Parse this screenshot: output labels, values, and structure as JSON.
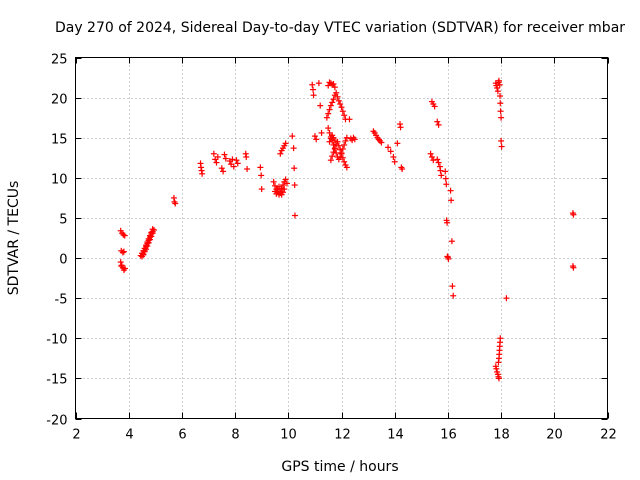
{
  "chart_data": {
    "type": "scatter",
    "title": "Day 270 of 2024, Sidereal Day-to-day VTEC variation (SDTVAR) for receiver mbar",
    "xlabel": "GPS time / hours",
    "ylabel": "SDTVAR / TECUs",
    "xlim": [
      2,
      22
    ],
    "ylim": [
      -20,
      25
    ],
    "xticks": [
      2,
      4,
      6,
      8,
      10,
      12,
      14,
      16,
      18,
      20,
      22
    ],
    "yticks": [
      -20,
      -15,
      -10,
      -5,
      0,
      5,
      10,
      15,
      20,
      25
    ],
    "grid": true,
    "marker": "plus",
    "color": "#ff0000",
    "series": [
      {
        "name": "SDTVAR",
        "points": [
          [
            3.7,
            3.4
          ],
          [
            3.75,
            3.1
          ],
          [
            3.8,
            2.9
          ],
          [
            3.85,
            2.8
          ],
          [
            3.72,
            0.9
          ],
          [
            3.78,
            0.7
          ],
          [
            3.82,
            0.8
          ],
          [
            3.7,
            -0.5
          ],
          [
            3.74,
            -0.9
          ],
          [
            3.78,
            -1.2
          ],
          [
            3.82,
            -1.5
          ],
          [
            3.86,
            -1.3
          ],
          [
            3.72,
            -1.0
          ],
          [
            4.45,
            0.3
          ],
          [
            4.5,
            0.6
          ],
          [
            4.55,
            0.9
          ],
          [
            4.6,
            1.2
          ],
          [
            4.65,
            1.6
          ],
          [
            4.7,
            2.0
          ],
          [
            4.75,
            2.4
          ],
          [
            4.8,
            2.8
          ],
          [
            4.85,
            3.2
          ],
          [
            4.9,
            3.6
          ],
          [
            4.5,
            0.2
          ],
          [
            4.55,
            0.5
          ],
          [
            4.6,
            0.8
          ],
          [
            4.65,
            1.1
          ],
          [
            4.7,
            1.5
          ],
          [
            4.75,
            1.9
          ],
          [
            4.8,
            2.3
          ],
          [
            4.85,
            2.7
          ],
          [
            4.9,
            3.1
          ],
          [
            4.95,
            3.5
          ],
          [
            4.55,
            0.4
          ],
          [
            4.6,
            0.9
          ],
          [
            4.65,
            1.4
          ],
          [
            4.7,
            1.8
          ],
          [
            4.75,
            2.2
          ],
          [
            4.8,
            2.6
          ],
          [
            4.85,
            3.0
          ],
          [
            4.9,
            3.3
          ],
          [
            5.7,
            7.5
          ],
          [
            5.72,
            7.0
          ],
          [
            5.75,
            6.8
          ],
          [
            6.7,
            11.8
          ],
          [
            6.72,
            11.3
          ],
          [
            6.74,
            10.9
          ],
          [
            6.76,
            10.5
          ],
          [
            7.2,
            13.0
          ],
          [
            7.25,
            12.3
          ],
          [
            7.3,
            11.9
          ],
          [
            7.35,
            12.6
          ],
          [
            7.5,
            11.2
          ],
          [
            7.55,
            10.8
          ],
          [
            7.6,
            12.9
          ],
          [
            7.65,
            12.4
          ],
          [
            7.8,
            12.1
          ],
          [
            7.85,
            11.7
          ],
          [
            7.9,
            12.3
          ],
          [
            7.95,
            11.4
          ],
          [
            8.05,
            12.2
          ],
          [
            8.1,
            11.8
          ],
          [
            8.4,
            13.0
          ],
          [
            8.42,
            12.6
          ],
          [
            8.45,
            11.1
          ],
          [
            8.95,
            11.3
          ],
          [
            8.98,
            10.3
          ],
          [
            9.0,
            8.6
          ],
          [
            9.45,
            9.5
          ],
          [
            9.5,
            9.0
          ],
          [
            9.55,
            8.6
          ],
          [
            9.6,
            8.2
          ],
          [
            9.65,
            7.9
          ],
          [
            9.7,
            8.3
          ],
          [
            9.75,
            8.7
          ],
          [
            9.8,
            9.1
          ],
          [
            9.85,
            9.5
          ],
          [
            9.9,
            9.8
          ],
          [
            9.5,
            8.3
          ],
          [
            9.55,
            8.0
          ],
          [
            9.6,
            8.5
          ],
          [
            9.65,
            8.9
          ],
          [
            9.7,
            8.1
          ],
          [
            9.75,
            7.9
          ],
          [
            9.8,
            8.2
          ],
          [
            9.85,
            8.6
          ],
          [
            9.95,
            9.3
          ],
          [
            9.7,
            13.0
          ],
          [
            9.75,
            13.4
          ],
          [
            9.8,
            13.7
          ],
          [
            9.85,
            14.0
          ],
          [
            9.9,
            14.3
          ],
          [
            10.15,
            15.2
          ],
          [
            10.2,
            13.7
          ],
          [
            10.22,
            11.2
          ],
          [
            10.24,
            9.1
          ],
          [
            10.25,
            5.3
          ],
          [
            10.9,
            21.6
          ],
          [
            10.93,
            21.0
          ],
          [
            10.95,
            20.3
          ],
          [
            11.0,
            15.2
          ],
          [
            11.05,
            14.8
          ],
          [
            11.15,
            21.8
          ],
          [
            11.2,
            19.0
          ],
          [
            11.25,
            15.6
          ],
          [
            11.5,
            21.5
          ],
          [
            11.55,
            21.9
          ],
          [
            11.6,
            21.8
          ],
          [
            11.65,
            21.6
          ],
          [
            11.7,
            21.7
          ],
          [
            11.75,
            21.3
          ],
          [
            11.45,
            17.5
          ],
          [
            11.5,
            18.0
          ],
          [
            11.55,
            18.5
          ],
          [
            11.6,
            19.0
          ],
          [
            11.65,
            19.4
          ],
          [
            11.7,
            19.8
          ],
          [
            11.75,
            20.3
          ],
          [
            11.8,
            20.6
          ],
          [
            11.85,
            20.1
          ],
          [
            11.9,
            19.6
          ],
          [
            11.95,
            19.2
          ],
          [
            12.0,
            18.8
          ],
          [
            12.05,
            18.3
          ],
          [
            12.1,
            17.8
          ],
          [
            12.15,
            17.3
          ],
          [
            11.5,
            16.2
          ],
          [
            11.55,
            15.6
          ],
          [
            11.6,
            15.1
          ],
          [
            11.65,
            14.6
          ],
          [
            11.7,
            14.1
          ],
          [
            11.75,
            13.6
          ],
          [
            11.8,
            13.1
          ],
          [
            11.85,
            12.6
          ],
          [
            11.9,
            12.3
          ],
          [
            11.95,
            12.6
          ],
          [
            12.0,
            13.1
          ],
          [
            12.05,
            13.6
          ],
          [
            12.1,
            14.1
          ],
          [
            12.15,
            14.6
          ],
          [
            12.2,
            15.0
          ],
          [
            11.6,
            12.2
          ],
          [
            11.65,
            12.7
          ],
          [
            11.7,
            13.2
          ],
          [
            11.75,
            13.7
          ],
          [
            11.8,
            14.2
          ],
          [
            11.85,
            14.5
          ],
          [
            11.9,
            14.0
          ],
          [
            11.95,
            13.5
          ],
          [
            12.0,
            13.0
          ],
          [
            12.05,
            12.5
          ],
          [
            12.1,
            12.0
          ],
          [
            12.15,
            11.6
          ],
          [
            12.2,
            11.3
          ],
          [
            11.55,
            14.5
          ],
          [
            11.6,
            14.9
          ],
          [
            11.65,
            15.3
          ],
          [
            11.7,
            15.0
          ],
          [
            11.75,
            14.7
          ],
          [
            12.3,
            17.3
          ],
          [
            12.35,
            14.9
          ],
          [
            12.4,
            14.7
          ],
          [
            12.45,
            15.0
          ],
          [
            12.5,
            14.8
          ],
          [
            13.2,
            15.8
          ],
          [
            13.25,
            15.6
          ],
          [
            13.3,
            15.3
          ],
          [
            13.35,
            15.0
          ],
          [
            13.4,
            14.8
          ],
          [
            13.45,
            14.6
          ],
          [
            13.5,
            14.4
          ],
          [
            13.75,
            13.8
          ],
          [
            13.85,
            13.3
          ],
          [
            13.95,
            12.6
          ],
          [
            14.0,
            12.0
          ],
          [
            14.1,
            14.3
          ],
          [
            14.2,
            16.7
          ],
          [
            14.22,
            16.3
          ],
          [
            14.25,
            11.3
          ],
          [
            14.28,
            11.1
          ],
          [
            15.4,
            19.5
          ],
          [
            15.45,
            19.2
          ],
          [
            15.5,
            18.9
          ],
          [
            15.35,
            13.0
          ],
          [
            15.4,
            12.6
          ],
          [
            15.45,
            12.2
          ],
          [
            15.6,
            17.0
          ],
          [
            15.65,
            16.6
          ],
          [
            15.6,
            12.3
          ],
          [
            15.65,
            11.9
          ],
          [
            15.7,
            11.4
          ],
          [
            15.72,
            10.9
          ],
          [
            15.75,
            10.3
          ],
          [
            15.9,
            10.8
          ],
          [
            15.92,
            9.9
          ],
          [
            15.94,
            9.2
          ],
          [
            15.95,
            4.7
          ],
          [
            15.97,
            4.4
          ],
          [
            16.0,
            0.1
          ],
          [
            16.02,
            -0.1
          ],
          [
            15.98,
            0.2
          ],
          [
            16.1,
            8.4
          ],
          [
            16.12,
            7.2
          ],
          [
            16.15,
            2.1
          ],
          [
            16.17,
            -3.5
          ],
          [
            16.2,
            -4.7
          ],
          [
            17.8,
            21.8
          ],
          [
            17.82,
            21.5
          ],
          [
            17.85,
            21.2
          ],
          [
            17.88,
            20.8
          ],
          [
            17.9,
            21.9
          ],
          [
            17.92,
            22.1
          ],
          [
            17.95,
            21.6
          ],
          [
            17.96,
            20.2
          ],
          [
            17.97,
            19.3
          ],
          [
            17.98,
            18.3
          ],
          [
            18.0,
            17.5
          ],
          [
            18.0,
            14.6
          ],
          [
            18.02,
            13.9
          ],
          [
            17.8,
            -13.5
          ],
          [
            17.82,
            -13.8
          ],
          [
            17.85,
            -14.2
          ],
          [
            17.88,
            -14.5
          ],
          [
            17.9,
            -14.8
          ],
          [
            17.92,
            -15.0
          ],
          [
            17.9,
            -13.0
          ],
          [
            17.92,
            -12.5
          ],
          [
            17.93,
            -12.0
          ],
          [
            17.94,
            -11.5
          ],
          [
            17.95,
            -11.0
          ],
          [
            17.96,
            -10.5
          ],
          [
            17.97,
            -10.0
          ],
          [
            18.2,
            -5.0
          ],
          [
            20.7,
            5.6
          ],
          [
            20.72,
            5.4
          ],
          [
            20.7,
            -1.0
          ],
          [
            20.72,
            -1.2
          ]
        ]
      }
    ]
  }
}
